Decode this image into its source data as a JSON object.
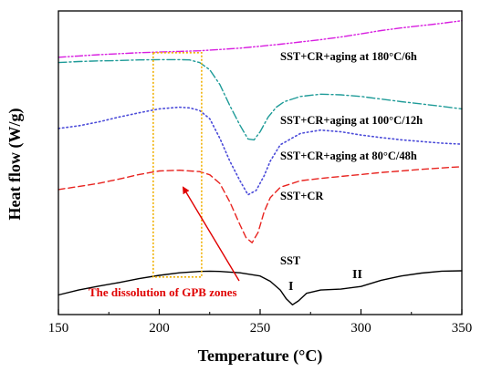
{
  "chart_data": {
    "type": "line",
    "title": "",
    "xlabel": "Temperature (°C)",
    "ylabel": "Heat flow (W/g)",
    "xlim": [
      150,
      350
    ],
    "xticks": [
      "150",
      "200",
      "250",
      "300",
      "350"
    ],
    "grid": false,
    "colors": {
      "sst": "#000000",
      "sst_cr": "#e8231f",
      "aging80": "#4b4bd9",
      "aging100": "#1e9b98",
      "aging180": "#d81ee0",
      "highlight_box": "#f0b000",
      "arrow": "#e00000"
    },
    "series": [
      {
        "key": "sst",
        "name": "SST",
        "style": "solid",
        "x": [
          150,
          160,
          170,
          180,
          190,
          200,
          210,
          220,
          225,
          230,
          240,
          250,
          255,
          260,
          263,
          266,
          269,
          273,
          280,
          290,
          300,
          310,
          320,
          330,
          340,
          350
        ],
        "y": [
          0.3,
          0.45,
          0.57,
          0.68,
          0.8,
          0.9,
          0.98,
          1.02,
          1.03,
          1.02,
          0.98,
          0.88,
          0.72,
          0.45,
          0.18,
          0.0,
          0.12,
          0.35,
          0.45,
          0.48,
          0.56,
          0.75,
          0.88,
          0.97,
          1.03,
          1.04
        ]
      },
      {
        "key": "sst_cr",
        "name": "SST+CR",
        "style": "dashed",
        "x": [
          150,
          160,
          170,
          180,
          190,
          200,
          210,
          220,
          225,
          230,
          235,
          240,
          243,
          246,
          249,
          252,
          255,
          260,
          270,
          280,
          290,
          300,
          310,
          320,
          330,
          340,
          350
        ],
        "y": [
          3.53,
          3.62,
          3.72,
          3.85,
          3.99,
          4.1,
          4.12,
          4.08,
          3.98,
          3.72,
          3.15,
          2.45,
          2.06,
          1.9,
          2.22,
          2.85,
          3.28,
          3.6,
          3.8,
          3.87,
          3.93,
          3.99,
          4.05,
          4.1,
          4.15,
          4.19,
          4.23
        ]
      },
      {
        "key": "aging80",
        "name": "SST+CR+aging at 80°C/48h",
        "style": "dotted",
        "x": [
          150,
          160,
          170,
          180,
          190,
          200,
          210,
          215,
          220,
          225,
          230,
          235,
          240,
          244,
          248,
          252,
          255,
          260,
          270,
          280,
          290,
          300,
          310,
          320,
          330,
          340,
          350
        ],
        "y": [
          5.4,
          5.48,
          5.6,
          5.75,
          5.88,
          6.0,
          6.05,
          6.03,
          5.95,
          5.7,
          5.1,
          4.4,
          3.8,
          3.37,
          3.5,
          3.95,
          4.4,
          4.9,
          5.25,
          5.35,
          5.3,
          5.2,
          5.12,
          5.05,
          5.0,
          4.95,
          4.92
        ]
      },
      {
        "key": "aging100",
        "name": "SST+CR+aging at 100°C/12h",
        "style": "dashdot",
        "x": [
          150,
          160,
          170,
          180,
          190,
          200,
          210,
          215,
          220,
          225,
          230,
          235,
          240,
          244,
          247,
          250,
          254,
          258,
          262,
          270,
          280,
          290,
          300,
          310,
          320,
          330,
          340,
          350
        ],
        "y": [
          7.42,
          7.45,
          7.47,
          7.48,
          7.5,
          7.51,
          7.51,
          7.5,
          7.42,
          7.2,
          6.75,
          6.1,
          5.5,
          5.08,
          5.05,
          5.3,
          5.75,
          6.05,
          6.22,
          6.38,
          6.45,
          6.43,
          6.38,
          6.3,
          6.22,
          6.15,
          6.08,
          6.0
        ]
      },
      {
        "key": "aging180",
        "name": "SST+CR+aging at 180°C/6h",
        "style": "dashdotdot",
        "x": [
          150,
          160,
          170,
          180,
          190,
          200,
          210,
          220,
          230,
          240,
          250,
          260,
          270,
          280,
          290,
          300,
          310,
          320,
          330,
          340,
          350
        ],
        "y": [
          7.58,
          7.62,
          7.66,
          7.69,
          7.72,
          7.74,
          7.76,
          7.78,
          7.82,
          7.86,
          7.92,
          7.98,
          8.05,
          8.12,
          8.2,
          8.3,
          8.4,
          8.48,
          8.55,
          8.62,
          8.7
        ]
      }
    ],
    "annotations": {
      "aging180": "SST+CR+aging at 180°C/6h",
      "aging100": "SST+CR+aging at 100°C/12h",
      "aging80": "SST+CR+aging at 80°C/48h",
      "sst_cr": "SST+CR",
      "sst": "SST",
      "peak_1": "I",
      "peak_2": "II",
      "gpb": "The dissolution of GPB zones"
    },
    "highlight_box": {
      "x": [
        197,
        221
      ],
      "y": [
        0.85,
        7.72
      ]
    }
  }
}
